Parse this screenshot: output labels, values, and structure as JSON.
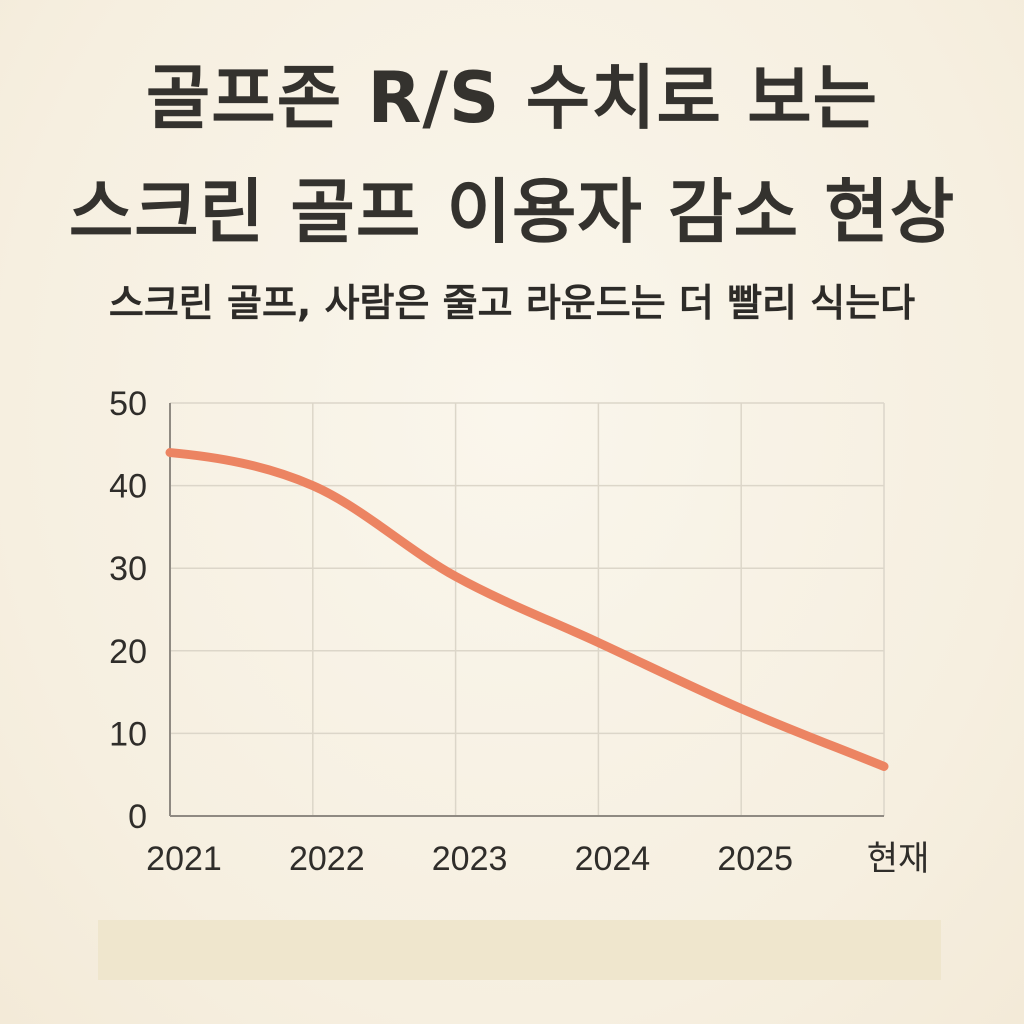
{
  "header": {
    "title_line1": "골프존 R/S 수치로 보는",
    "title_line2": "스크린 골프 이용자 감소 현상",
    "subtitle": "스크린 골프, 사람은 줄고 라운드는 더 빨리 식는다"
  },
  "chart_data": {
    "type": "line",
    "categories": [
      "2021",
      "2022",
      "2023",
      "2024",
      "2025",
      "현재"
    ],
    "series": [
      {
        "values": [
          44,
          40,
          29,
          21,
          13,
          6
        ]
      }
    ],
    "title": "",
    "xlabel": "",
    "ylabel": "",
    "ylim": [
      0,
      50
    ],
    "yticks": [
      "0",
      "10",
      "20",
      "30",
      "40",
      "50"
    ],
    "grid": true,
    "legend": "none",
    "line_color": "#ec8462",
    "grid_color": "#dcd6c9",
    "axis_color": "#8f8a82"
  }
}
